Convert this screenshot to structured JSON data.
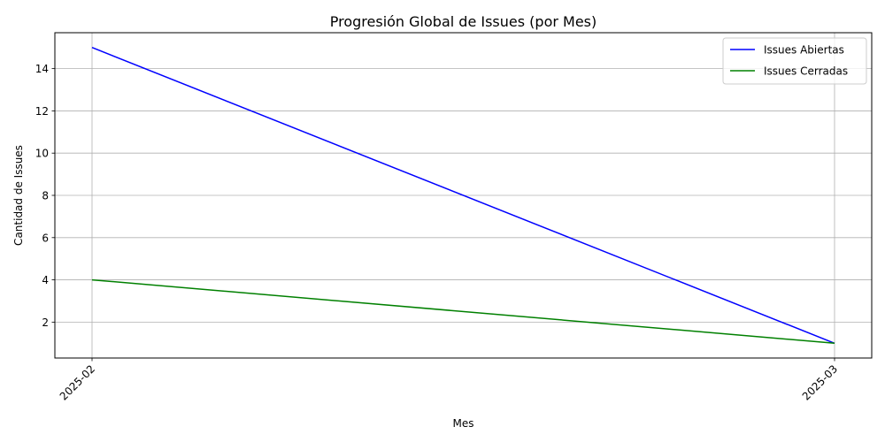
{
  "chart_data": {
    "type": "line",
    "title": "Progresión Global de Issues (por Mes)",
    "xlabel": "Mes",
    "ylabel": "Cantidad de Issues",
    "categories": [
      "2025-02",
      "2025-03"
    ],
    "series": [
      {
        "name": "Issues Abiertas",
        "values": [
          15,
          1
        ],
        "color": "#0000ff"
      },
      {
        "name": "Issues Cerradas",
        "values": [
          4,
          1
        ],
        "color": "#008000"
      }
    ],
    "ylim": [
      0.3,
      15.7
    ],
    "yticks": [
      2,
      4,
      6,
      8,
      10,
      12,
      14
    ],
    "grid": true,
    "legend": "top-right"
  }
}
